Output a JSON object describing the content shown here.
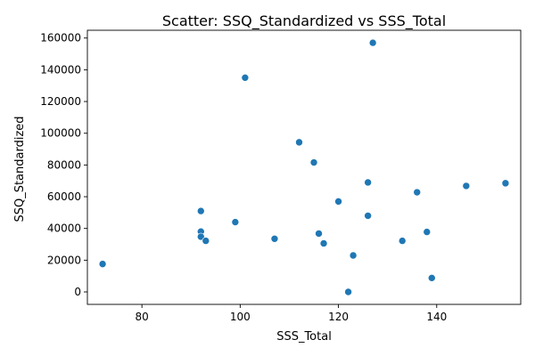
{
  "chart_data": {
    "type": "scatter",
    "title": "Scatter: SSQ_Standardized vs SSS_Total",
    "xlabel": "SSS_Total",
    "ylabel": "SSQ_Standardized",
    "xlim": [
      68.9,
      157.1
    ],
    "ylim": [
      -7850,
      164900
    ],
    "xticks": [
      80,
      100,
      120,
      140
    ],
    "yticks": [
      0,
      20000,
      40000,
      60000,
      80000,
      100000,
      120000,
      140000,
      160000
    ],
    "grid": false,
    "marker_color": "#1f77b4",
    "points": [
      {
        "x": 72,
        "y": 17600
      },
      {
        "x": 92,
        "y": 51000
      },
      {
        "x": 92,
        "y": 38000
      },
      {
        "x": 92,
        "y": 34800
      },
      {
        "x": 93,
        "y": 32200
      },
      {
        "x": 99,
        "y": 44000
      },
      {
        "x": 101,
        "y": 135000
      },
      {
        "x": 107,
        "y": 33500
      },
      {
        "x": 112,
        "y": 94300
      },
      {
        "x": 115,
        "y": 81600
      },
      {
        "x": 116,
        "y": 36800
      },
      {
        "x": 117,
        "y": 30600
      },
      {
        "x": 120,
        "y": 57000
      },
      {
        "x": 122,
        "y": 0
      },
      {
        "x": 123,
        "y": 23000
      },
      {
        "x": 126,
        "y": 69000
      },
      {
        "x": 126,
        "y": 48000
      },
      {
        "x": 127,
        "y": 157000
      },
      {
        "x": 133,
        "y": 32200
      },
      {
        "x": 136,
        "y": 62800
      },
      {
        "x": 138,
        "y": 37800
      },
      {
        "x": 139,
        "y": 8800
      },
      {
        "x": 146,
        "y": 66800
      },
      {
        "x": 154,
        "y": 68500
      }
    ]
  }
}
